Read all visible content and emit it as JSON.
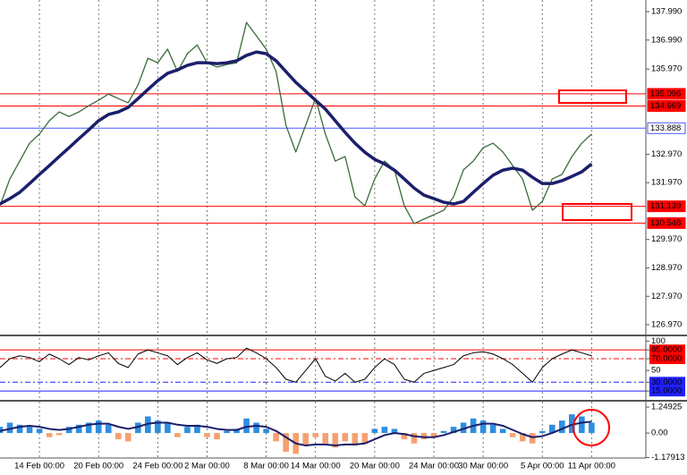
{
  "chart_data": [
    {
      "type": "line",
      "ylim": [
        126.655,
        138.4
      ],
      "yticks": [
        {
          "value": 137.99,
          "label": "137.990"
        },
        {
          "value": 136.99,
          "label": "136.990"
        },
        {
          "value": 135.97,
          "label": "135.970"
        },
        {
          "value": 132.97,
          "label": "132.970"
        },
        {
          "value": 131.97,
          "label": "131.970"
        },
        {
          "value": 129.97,
          "label": "129.970"
        },
        {
          "value": 128.97,
          "label": "128.970"
        },
        {
          "value": 127.97,
          "label": "127.970"
        },
        {
          "value": 126.97,
          "label": "126.970"
        }
      ],
      "hlines": [
        {
          "value": 135.096,
          "color": "#ff0000",
          "tag_color": "#ff0000",
          "text_color": "#ffffff"
        },
        {
          "value": 134.669,
          "color": "#ff0000",
          "tag_color": "#ff0000",
          "text_color": "#ffffff"
        },
        {
          "value": 133.888,
          "color": "#4a5aff",
          "tag_color": "#ffffff",
          "text_color": "#000000"
        },
        {
          "value": 131.139,
          "color": "#ff0000",
          "tag_color": "#ff0000",
          "text_color": "#ffffff"
        },
        {
          "value": 130.548,
          "color": "#ff0000",
          "tag_color": "#ff0000",
          "text_color": "#ffffff"
        }
      ],
      "series": [
        {
          "color": "#3a6b3a",
          "width": 1.3,
          "values": [
            131.16,
            132.1,
            132.73,
            133.36,
            133.68,
            134.15,
            134.46,
            134.3,
            134.46,
            134.68,
            134.87,
            135.09,
            134.93,
            134.78,
            135.41,
            136.35,
            136.19,
            136.67,
            135.88,
            136.51,
            136.82,
            136.19,
            136.04,
            136.13,
            136.19,
            137.61,
            137.14,
            136.67,
            135.88,
            133.99,
            133.05,
            133.99,
            134.94,
            133.68,
            132.73,
            132.89,
            131.47,
            131.16,
            132.1,
            132.73,
            132.42,
            131.16,
            130.53,
            130.69,
            130.84,
            131.0,
            131.47,
            132.42,
            132.73,
            133.2,
            133.36,
            133.05,
            132.57,
            132.1,
            131.0,
            131.31,
            132.1,
            132.26,
            132.89,
            133.36,
            133.68
          ]
        },
        {
          "color": "#1b1f6b",
          "width": 3.5,
          "values": [
            131.22,
            131.41,
            131.63,
            131.94,
            132.26,
            132.57,
            132.89,
            133.2,
            133.52,
            133.83,
            134.15,
            134.37,
            134.46,
            134.62,
            134.93,
            135.25,
            135.56,
            135.82,
            135.94,
            136.1,
            136.19,
            136.19,
            136.16,
            136.19,
            136.26,
            136.45,
            136.57,
            136.51,
            136.26,
            135.88,
            135.5,
            135.19,
            134.87,
            134.56,
            134.15,
            133.74,
            133.36,
            133.04,
            132.79,
            132.63,
            132.41,
            132.1,
            131.78,
            131.53,
            131.41,
            131.28,
            131.22,
            131.31,
            131.63,
            131.94,
            132.23,
            132.41,
            132.48,
            132.41,
            132.16,
            131.94,
            131.94,
            132.04,
            132.19,
            132.35,
            132.63
          ]
        }
      ]
    },
    {
      "type": "line",
      "ylim": [
        0,
        105
      ],
      "yticks": [
        100,
        {
          "value": 85,
          "label": "85.0000",
          "color": "#ff0000",
          "dash": false
        },
        {
          "value": 70,
          "label": "70.0000",
          "color": "#ff0000",
          "dash": true
        },
        50,
        {
          "value": 30,
          "label": "30.0000",
          "color": "#2020ff",
          "dash": true
        },
        {
          "value": 15,
          "label": "15.0000",
          "color": "#2020ff",
          "dash": false
        }
      ],
      "series": [
        {
          "color": "#000000",
          "width": 1,
          "values": [
            55,
            70,
            75,
            72,
            65,
            78,
            70,
            60,
            72,
            68,
            75,
            80,
            62,
            55,
            78,
            85,
            80,
            75,
            60,
            72,
            80,
            68,
            62,
            70,
            72,
            88,
            80,
            70,
            55,
            35,
            30,
            50,
            70,
            40,
            32,
            45,
            30,
            35,
            55,
            70,
            60,
            35,
            30,
            45,
            50,
            55,
            60,
            75,
            80,
            82,
            78,
            70,
            60,
            45,
            30,
            55,
            70,
            78,
            85,
            80,
            75
          ]
        }
      ]
    },
    {
      "type": "bar",
      "ylim": [
        -1.2,
        1.51
      ],
      "yticks": [
        1.24925,
        {
          "value": 0,
          "label": "0.00"
        },
        -1.17913
      ],
      "x": [
        0,
        1,
        2,
        3,
        4,
        5,
        6,
        7,
        8,
        9,
        10,
        11,
        12,
        13,
        14,
        15,
        16,
        17,
        18,
        19,
        20,
        21,
        22,
        23,
        24,
        25,
        26,
        27,
        28,
        29,
        30,
        31,
        32,
        33,
        34,
        35,
        36,
        37,
        38,
        39,
        40,
        41,
        42,
        43,
        44,
        45,
        46,
        47,
        48,
        49,
        50,
        51,
        52,
        53,
        54,
        55,
        56,
        57,
        58,
        59,
        60
      ],
      "xlim": [
        0,
        65.5
      ],
      "xticks": [
        {
          "value": 4,
          "label": "14 Feb 00:00"
        },
        {
          "value": 10,
          "label": "20 Feb 00:00"
        },
        {
          "value": 16,
          "label": "24 Feb 00:00"
        },
        {
          "value": 21,
          "label": "2 Mar 00:00"
        },
        {
          "value": 27,
          "label": "8 Mar 00:00"
        },
        {
          "value": 32,
          "label": "14 Mar 00:00"
        },
        {
          "value": 38,
          "label": "20 Mar 00:00"
        },
        {
          "value": 44,
          "label": "24 Mar 00:00"
        },
        {
          "value": 49,
          "label": "30 Mar 00:00"
        },
        {
          "value": 55,
          "label": "5 Apr 00:00"
        },
        {
          "value": 60,
          "label": "11 Apr 00:00"
        }
      ],
      "series": [
        {
          "type": "bar",
          "color": "#2e8ee0",
          "negative_color": "#f5a070",
          "values": [
            0.3,
            0.5,
            0.4,
            0.3,
            0.2,
            -0.2,
            -0.1,
            0.3,
            0.4,
            0.5,
            0.6,
            0.4,
            -0.3,
            -0.4,
            0.5,
            0.8,
            0.6,
            0.5,
            -0.2,
            0.3,
            0.4,
            -0.2,
            -0.3,
            0.1,
            0.2,
            0.7,
            0.5,
            0.2,
            -0.4,
            -0.9,
            -1.0,
            -0.6,
            -0.2,
            -0.5,
            -0.7,
            -0.4,
            -0.6,
            -0.5,
            0.2,
            0.3,
            0.2,
            -0.3,
            -0.5,
            -0.3,
            -0.2,
            0.1,
            0.3,
            0.5,
            0.7,
            0.6,
            0.4,
            0.2,
            -0.2,
            -0.4,
            -0.5,
            0.1,
            0.4,
            0.6,
            0.9,
            0.8,
            0.5
          ]
        },
        {
          "type": "line",
          "color": "#1b1f6b",
          "width": 2,
          "values": [
            0.1,
            0.2,
            0.3,
            0.35,
            0.3,
            0.2,
            0.15,
            0.2,
            0.3,
            0.4,
            0.45,
            0.45,
            0.3,
            0.2,
            0.3,
            0.45,
            0.5,
            0.5,
            0.4,
            0.35,
            0.35,
            0.3,
            0.2,
            0.15,
            0.15,
            0.3,
            0.35,
            0.3,
            0.1,
            -0.2,
            -0.5,
            -0.6,
            -0.55,
            -0.55,
            -0.6,
            -0.55,
            -0.55,
            -0.5,
            -0.3,
            -0.1,
            0.0,
            -0.05,
            -0.15,
            -0.2,
            -0.2,
            -0.1,
            0.05,
            0.2,
            0.35,
            0.45,
            0.45,
            0.35,
            0.15,
            -0.05,
            -0.2,
            -0.15,
            0.0,
            0.2,
            0.4,
            0.5,
            0.55
          ]
        }
      ]
    }
  ]
}
